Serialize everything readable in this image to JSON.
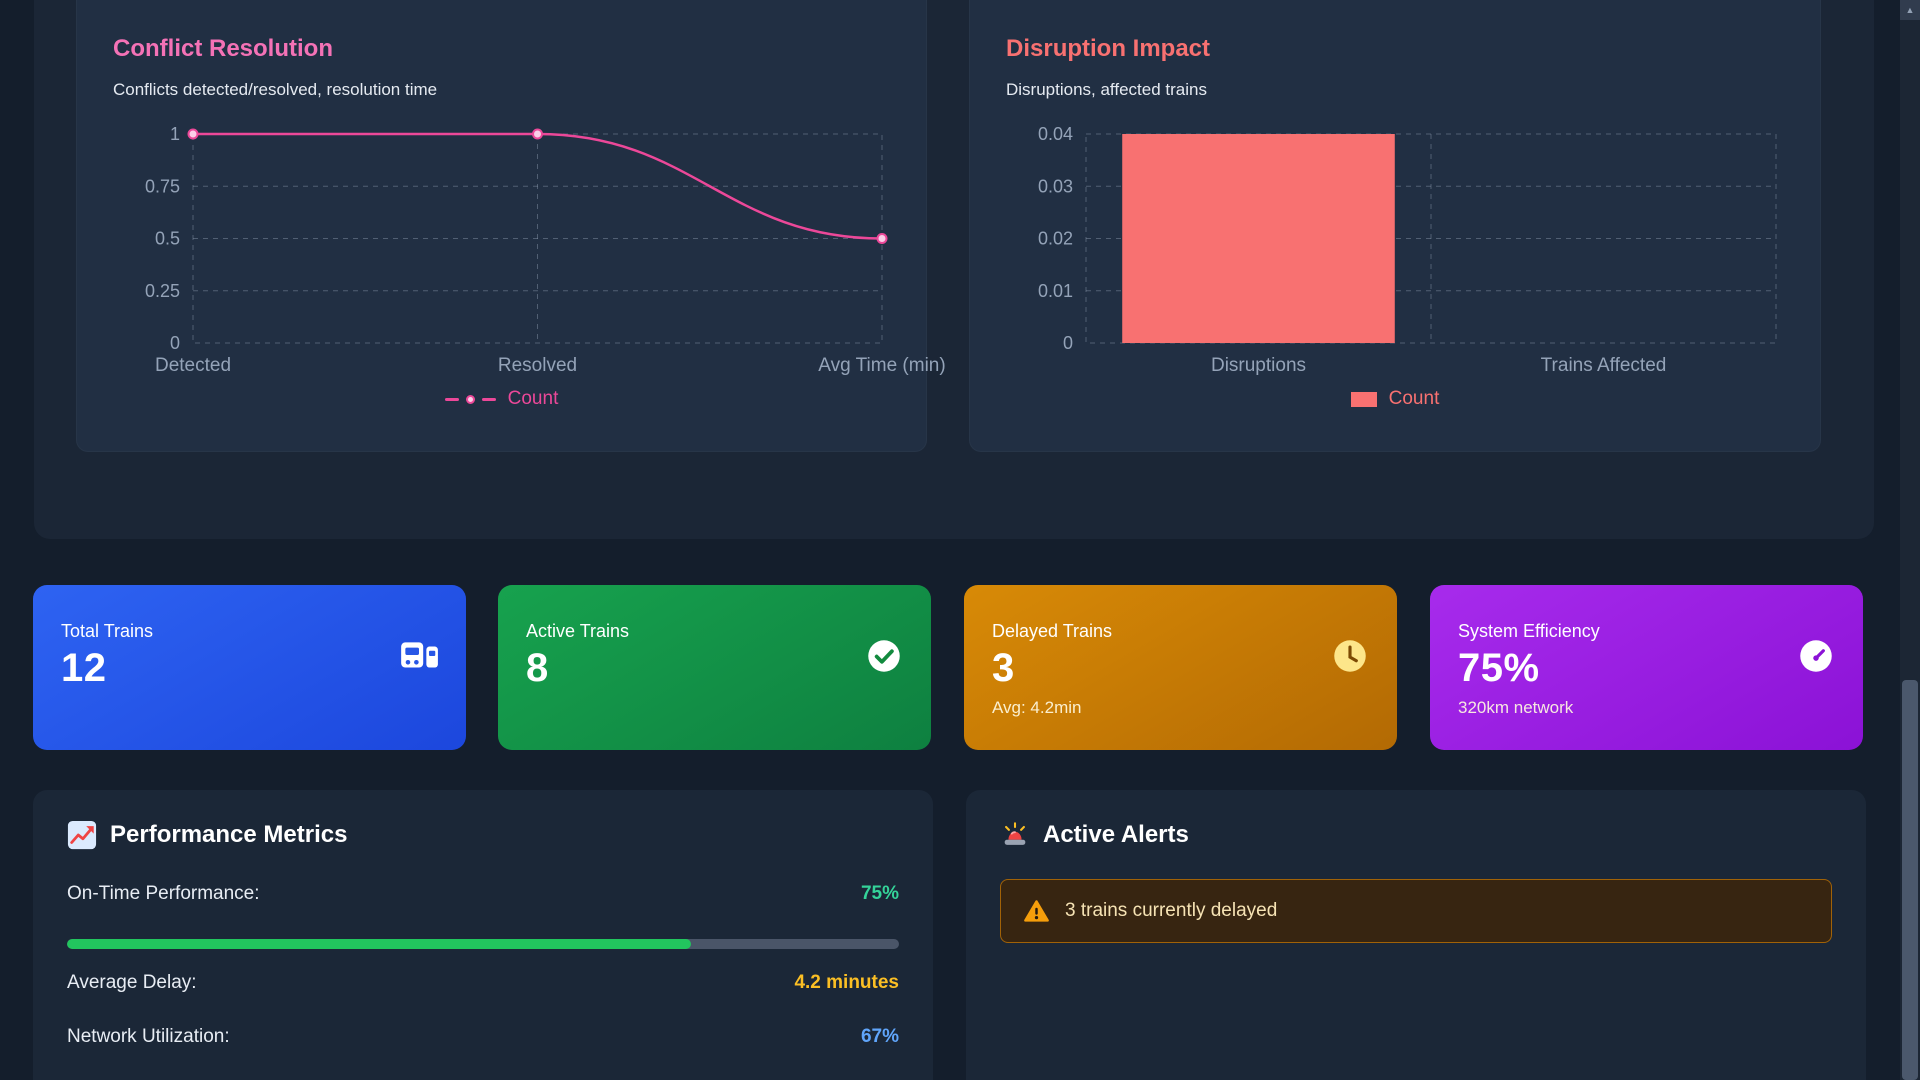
{
  "charts": {
    "conflict": {
      "title": "Conflict Resolution",
      "subtitle": "Conflicts detected/resolved, resolution time",
      "accent": "#f472b6"
    },
    "disruption": {
      "title": "Disruption Impact",
      "subtitle": "Disruptions, affected trains",
      "accent": "#f87171"
    }
  },
  "chart_data": [
    {
      "type": "line",
      "title": "Conflict Resolution",
      "categories": [
        "Detected",
        "Resolved",
        "Avg Time (min)"
      ],
      "series": [
        {
          "name": "Count",
          "values": [
            1,
            1,
            0.5
          ]
        }
      ],
      "series_name": "Count",
      "yticks": [
        "0",
        "0.25",
        "0.5",
        "0.75",
        "1"
      ],
      "ylim": [
        0,
        1
      ],
      "color": "#ec4899",
      "grid": "dashed",
      "legend_position": "bottom"
    },
    {
      "type": "bar",
      "title": "Disruption Impact",
      "categories": [
        "Disruptions",
        "Trains Affected"
      ],
      "series": [
        {
          "name": "Count",
          "values": [
            0.04,
            0
          ]
        }
      ],
      "series_name": "Count",
      "yticks": [
        "0",
        "0.01",
        "0.02",
        "0.03",
        "0.04"
      ],
      "ylim": [
        0,
        0.04
      ],
      "color": "#f87171",
      "grid": "dashed",
      "legend_position": "bottom"
    }
  ],
  "stats": [
    {
      "label": "Total Trains",
      "value": "12",
      "sub": "",
      "icon": "train-icon",
      "color_from": "#2e63f2",
      "color_to": "#1c47dd"
    },
    {
      "label": "Active Trains",
      "value": "8",
      "sub": "",
      "icon": "check-circle-icon",
      "color_from": "#17a24e",
      "color_to": "#0e8040"
    },
    {
      "label": "Delayed Trains",
      "value": "3",
      "sub": "Avg: 4.2min",
      "icon": "clock-icon",
      "color_from": "#d88a06",
      "color_to": "#b36a04"
    },
    {
      "label": "System Efficiency",
      "value": "75%",
      "sub": "320km network",
      "icon": "gauge-icon",
      "color_from": "#a72bec",
      "color_to": "#8b12d6"
    }
  ],
  "performance": {
    "icon": "chart-increasing-icon",
    "title": "Performance Metrics",
    "rows": [
      {
        "label": "On-Time Performance:",
        "value": "75%",
        "color": "#34d399"
      },
      {
        "label": "Average Delay:",
        "value": "4.2 minutes",
        "color": "#fbbf24"
      },
      {
        "label": "Network Utilization:",
        "value": "67%",
        "color": "#60a5fa"
      }
    ],
    "progress_percent": 75,
    "progress_color": "#22c55e"
  },
  "alerts": {
    "icon": "siren-icon",
    "title": "Active Alerts",
    "items": [
      {
        "icon": "warning-icon",
        "text": "3 trains currently delayed"
      }
    ]
  }
}
